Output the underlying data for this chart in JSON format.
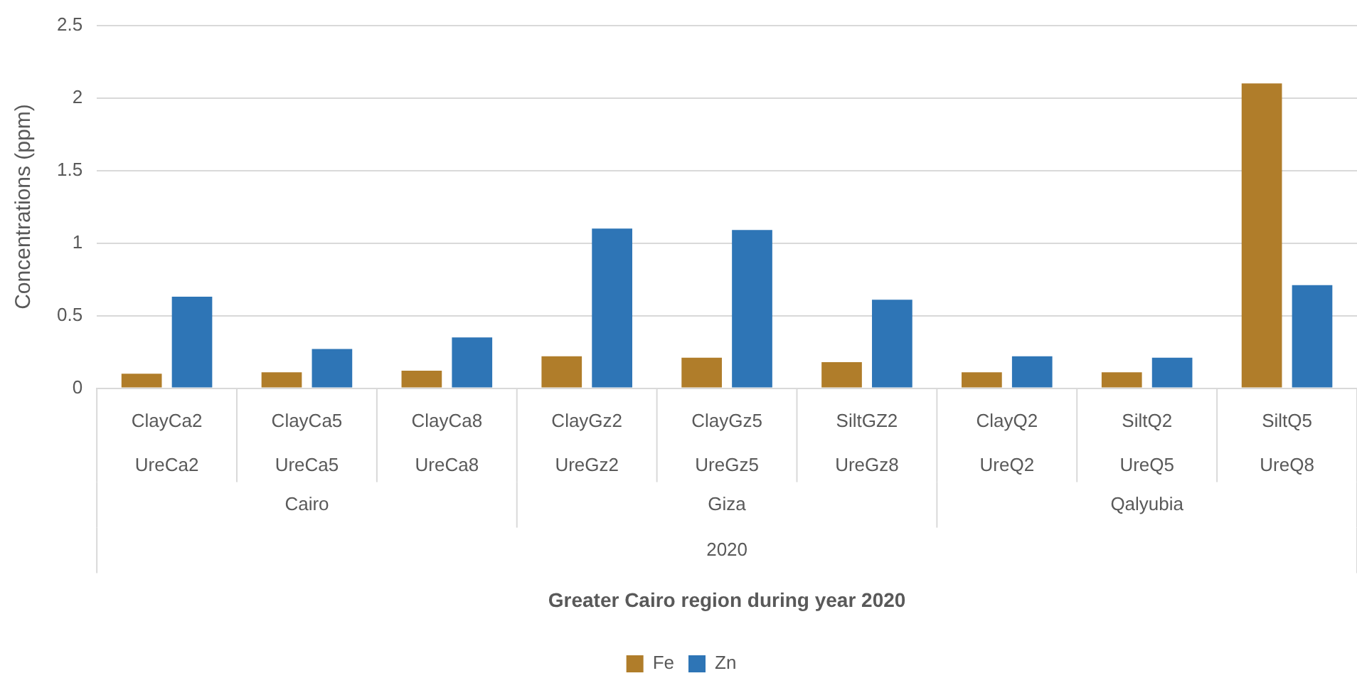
{
  "chart_data": {
    "type": "bar",
    "ylabel": "Concentrations (ppm)",
    "categories": [
      "ClayCa2\nUreCa2",
      "ClayCa5\nUreCa5",
      "ClayCa8\nUreCa8",
      "ClayGz2\nUreGz2",
      "ClayGz5\nUreGz5",
      "SiltGZ2\nUreGz8",
      "ClayQ2\nUreQ2",
      "SiltQ2\nUreQ5",
      "SiltQ5\nUreQ8"
    ],
    "series": [
      {
        "name": "Fe",
        "color": "#b07d2a",
        "values": [
          0.1,
          0.11,
          0.12,
          0.22,
          0.21,
          0.18,
          0.11,
          0.11,
          2.1
        ]
      },
      {
        "name": "Zn",
        "color": "#2e75b6",
        "values": [
          0.63,
          0.27,
          0.35,
          1.1,
          1.09,
          0.61,
          0.22,
          0.21,
          0.71
        ]
      }
    ],
    "annotations": [
      "Cairo",
      "Giza",
      "Qalyubia",
      "2020",
      "Greater Cairo region during year 2020"
    ],
    "ylim": [
      0,
      2.5
    ],
    "yticks": [
      0,
      0.5,
      1,
      1.5,
      2,
      2.5
    ],
    "grid": "y",
    "legend": "bottom"
  }
}
